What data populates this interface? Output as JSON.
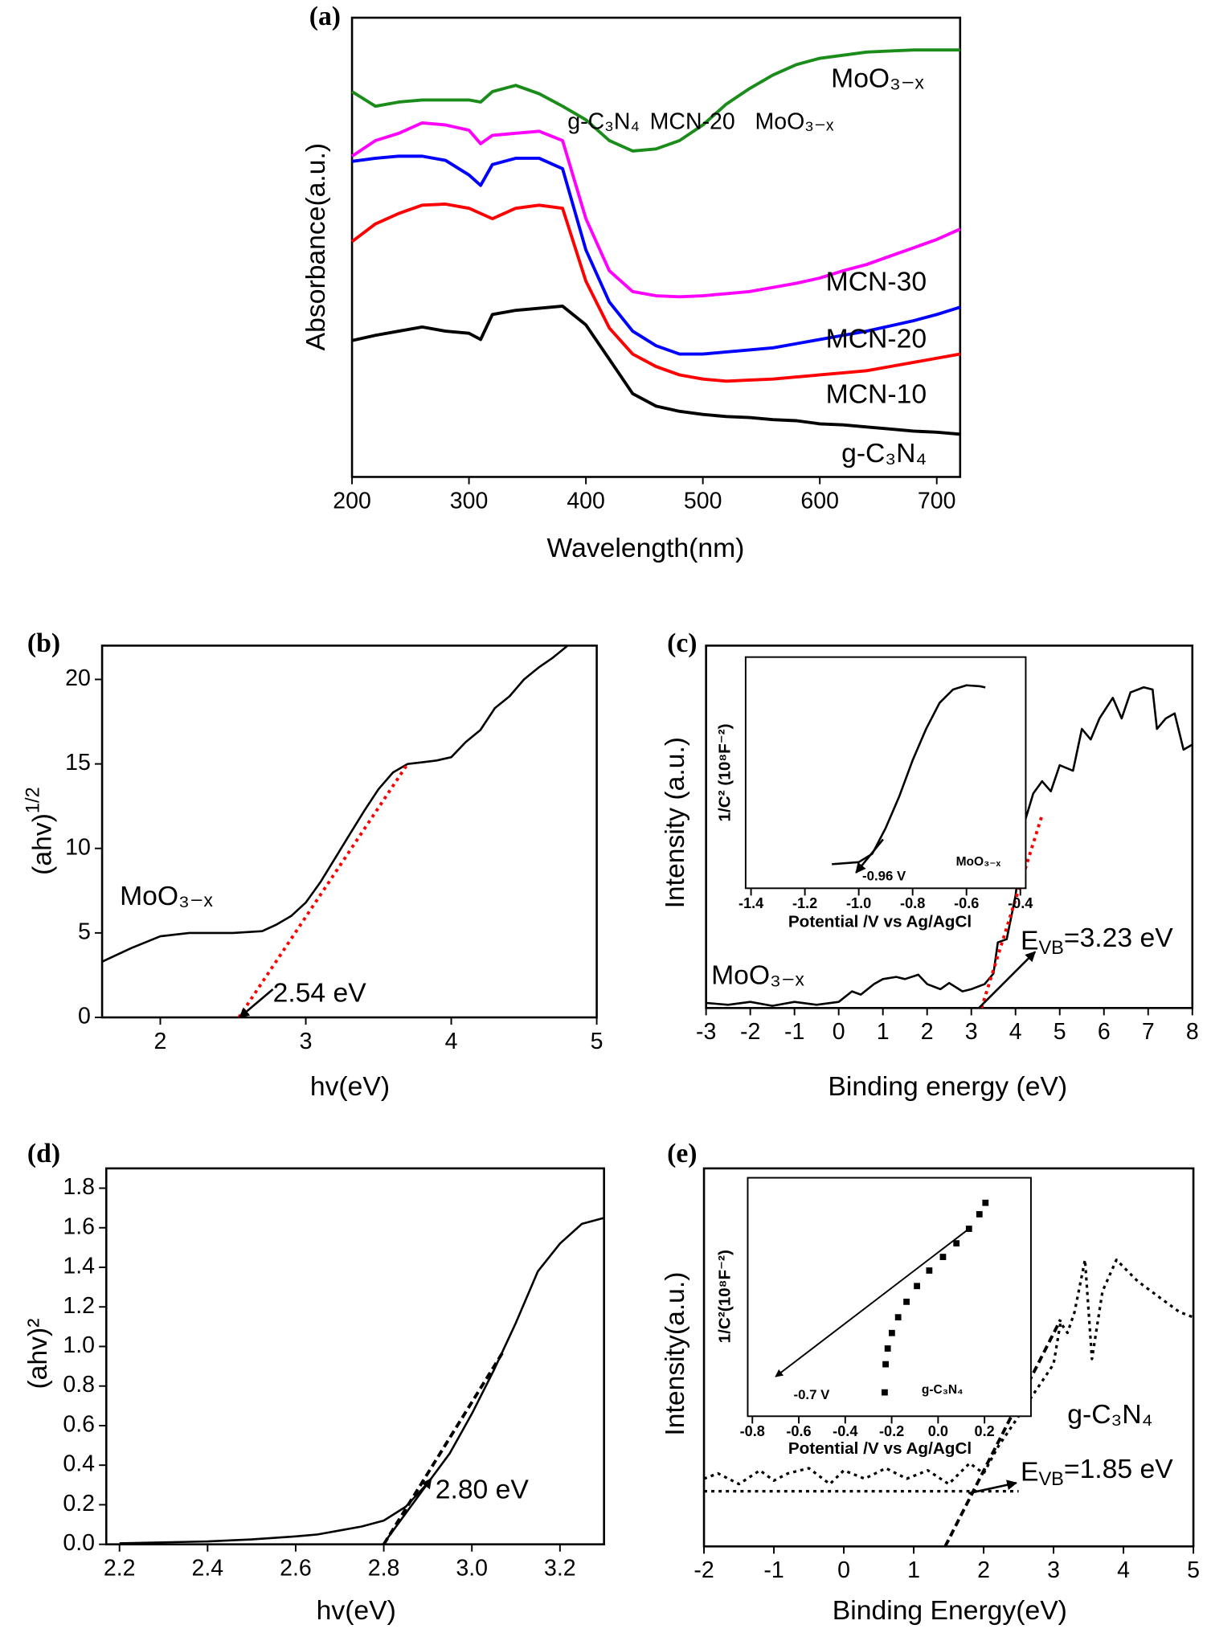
{
  "chart_data": [
    {
      "type": "line",
      "title": "(a)",
      "x_label": "Wavelength(nm)",
      "y_label": "Absorbance(a.u.)",
      "x": [
        200,
        220,
        240,
        260,
        280,
        300,
        310,
        320,
        340,
        360,
        380,
        400,
        420,
        440,
        460,
        480,
        500,
        520,
        540,
        560,
        580,
        600,
        620,
        640,
        660,
        680,
        700,
        720
      ],
      "xlim": [
        200,
        720
      ],
      "xticks": [
        200,
        300,
        400,
        500,
        600,
        700
      ],
      "ylim": [
        0,
        441
      ],
      "series": [
        {
          "name": "g-C₃N₄",
          "color": "#000000",
          "values": [
            131,
            136,
            140,
            144,
            140,
            138,
            132,
            156,
            160,
            162,
            164,
            146,
            113,
            80,
            68,
            63,
            60,
            58,
            57,
            55,
            54,
            51,
            50,
            48,
            46,
            44,
            43,
            41
          ]
        },
        {
          "name": "MCN-10",
          "color": "#ff0000",
          "values": [
            226,
            243,
            253,
            261,
            262,
            258,
            253,
            248,
            258,
            261,
            258,
            188,
            143,
            118,
            106,
            98,
            94,
            92,
            93,
            94,
            96,
            98,
            100,
            102,
            106,
            110,
            114,
            118
          ]
        },
        {
          "name": "MCN-20",
          "color": "#0000ff",
          "values": [
            303,
            306,
            308,
            308,
            304,
            290,
            280,
            300,
            306,
            306,
            296,
            218,
            168,
            140,
            126,
            118,
            118,
            120,
            122,
            124,
            128,
            132,
            136,
            140,
            145,
            150,
            156,
            163
          ]
        },
        {
          "name": "MCN-30",
          "color": "#ff00ff",
          "values": [
            308,
            323,
            330,
            340,
            338,
            333,
            320,
            328,
            330,
            332,
            323,
            248,
            198,
            178,
            174,
            173,
            174,
            176,
            178,
            182,
            186,
            191,
            198,
            204,
            212,
            220,
            228,
            238
          ]
        },
        {
          "name": "MoO₃₋ₓ",
          "color": "#1a8c1a",
          "values": [
            370,
            356,
            360,
            362,
            362,
            362,
            360,
            370,
            376,
            368,
            356,
            343,
            323,
            313,
            315,
            323,
            338,
            358,
            373,
            386,
            396,
            402,
            405,
            408,
            409,
            410,
            410,
            410
          ]
        }
      ],
      "inset_labels": [
        "g-C₃N₄",
        "MCN-20",
        "MoO₃₋ₓ"
      ]
    },
    {
      "type": "line",
      "title": "(b)",
      "x_label": "hv(eV)",
      "y_label": [
        {
          "text": "(ahv)"
        },
        {
          "sup": "1/2"
        }
      ],
      "x": [
        1.6,
        1.8,
        2.0,
        2.2,
        2.5,
        2.7,
        2.8,
        2.9,
        3.0,
        3.1,
        3.2,
        3.3,
        3.4,
        3.5,
        3.6,
        3.7,
        3.8,
        3.9,
        4.0,
        4.1,
        4.2,
        4.3,
        4.4,
        4.5,
        4.6,
        4.7,
        4.8
      ],
      "xlim": [
        1.6,
        5
      ],
      "xticks": [
        2,
        3,
        4,
        5
      ],
      "ylim": [
        0,
        22
      ],
      "yticks": [
        0,
        5,
        10,
        15,
        20
      ],
      "series": [
        {
          "name": "MoO₃₋ₓ",
          "color": "#000000",
          "values": [
            3.3,
            4.1,
            4.8,
            5.0,
            5.0,
            5.1,
            5.5,
            6.0,
            6.8,
            8.0,
            9.4,
            10.8,
            12.2,
            13.5,
            14.5,
            15.0,
            15.1,
            15.2,
            15.4,
            16.3,
            17.0,
            18.3,
            19.0,
            20.0,
            20.7,
            21.3,
            22.0
          ]
        }
      ],
      "fit": {
        "x": [
          2.54,
          3.7
        ],
        "values": [
          0,
          15
        ],
        "color": "#ff0000",
        "line_style": "dotted"
      },
      "annotations": [
        "2.54 eV"
      ]
    },
    {
      "type": "line",
      "title": "(c)",
      "x_label": "Binding energy (eV)",
      "y_label": "Intensity (a.u.)",
      "x": [
        -3,
        -2.5,
        -2,
        -1.5,
        -1,
        -0.5,
        0,
        0.3,
        0.5,
        0.8,
        1,
        1.3,
        1.5,
        1.8,
        2,
        2.3,
        2.5,
        2.8,
        3,
        3.3,
        3.5,
        3.6,
        3.8,
        4,
        4.2,
        4.4,
        4.6,
        4.8,
        5,
        5.3,
        5.5,
        5.7,
        5.9,
        6.2,
        6.4,
        6.6,
        6.9,
        7.1,
        7.2,
        7.4,
        7.6,
        7.8,
        8
      ],
      "xlim": [
        -3,
        8
      ],
      "xticks": [
        -3,
        -2,
        -1,
        0,
        1,
        2,
        3,
        4,
        5,
        6,
        7,
        8
      ],
      "ylim": [
        0,
        100
      ],
      "series": [
        {
          "name": "MoO₃₋ₓ",
          "color": "#000000",
          "values": [
            1.4,
            0.9,
            1.7,
            0.6,
            1.7,
            0.9,
            1.7,
            4.6,
            3.7,
            6.6,
            8.0,
            8.6,
            8.0,
            9.2,
            6.6,
            5.2,
            6.9,
            4.6,
            5.2,
            6.6,
            9.5,
            18.1,
            19.0,
            31.0,
            51.1,
            59.2,
            62.6,
            59.8,
            67.0,
            65.5,
            77.0,
            74.1,
            79.9,
            85.6,
            79.9,
            87.1,
            88.5,
            87.9,
            77.0,
            79.9,
            81.3,
            71.3,
            72.7
          ]
        }
      ],
      "fit": {
        "x": [
          3.23,
          4.6
        ],
        "values": [
          0,
          53.2
        ],
        "color": "#ff0000",
        "line_style": "dotted"
      },
      "annotations": [
        [
          {
            "text": "E"
          },
          {
            "sub": "VB"
          },
          {
            "text": "=3.23 eV"
          }
        ]
      ],
      "inset": {
        "type": "line",
        "x_label": "Potential /V vs Ag/AgCl",
        "y_label": "1/C² (10⁸F⁻²)",
        "x": [
          -1.1,
          -1.0,
          -0.95,
          -0.9,
          -0.85,
          -0.8,
          -0.75,
          -0.7,
          -0.65,
          -0.6,
          -0.55,
          -0.53
        ],
        "xlim": [
          -1.42,
          -0.38
        ],
        "xticks": [
          -1.4,
          -1.2,
          {
            "value": -1,
            "label": "-1.0"
          },
          -0.8,
          -0.6,
          -0.4
        ],
        "ylim": [
          0,
          100
        ],
        "series": [
          {
            "name": "MoO₃₋ₓ",
            "color": "#000000",
            "values": [
              10.4,
              11.3,
              14.9,
              26.1,
              39.6,
              55.4,
              68.9,
              80.2,
              86.0,
              87.8,
              87.4,
              86.9
            ]
          }
        ],
        "annotations": [
          "-0.96 V"
        ]
      }
    },
    {
      "type": "line",
      "title": "(d)",
      "x_label": "hv(eV)",
      "y_label": "(ahv)²",
      "x": [
        2.2,
        2.4,
        2.5,
        2.6,
        2.65,
        2.7,
        2.75,
        2.8,
        2.85,
        2.9,
        2.95,
        3.0,
        3.05,
        3.1,
        3.15,
        3.2,
        3.25,
        3.3
      ],
      "xlim": [
        2.17,
        3.3
      ],
      "xticks": [
        2.2,
        2.4,
        2.6,
        2.8,
        {
          "value": 3,
          "label": "3.0"
        },
        3.2
      ],
      "ylim": [
        0,
        1.9
      ],
      "yticks": [
        {
          "value": 0,
          "label": "0.0"
        },
        0.2,
        0.4,
        0.6,
        0.8,
        {
          "value": 1,
          "label": "1.0"
        },
        1.2,
        1.4,
        1.6,
        1.8
      ],
      "series": [
        {
          "color": "#000000",
          "values": [
            0.005,
            0.015,
            0.025,
            0.04,
            0.05,
            0.07,
            0.09,
            0.12,
            0.19,
            0.31,
            0.46,
            0.66,
            0.88,
            1.12,
            1.38,
            1.52,
            1.62,
            1.65
          ]
        }
      ],
      "fit": {
        "x": [
          2.8,
          3.07
        ],
        "values": [
          0,
          0.97
        ],
        "color": "#000000",
        "line_style": "dashed"
      },
      "annotations": [
        "2.80 eV"
      ]
    },
    {
      "type": "line",
      "title": "(e)",
      "x_label": "Binding Energy(eV)",
      "y_label": "Intensity(a.u.)",
      "x": [
        -2,
        -1.8,
        -1.5,
        -1.2,
        -1,
        -0.8,
        -0.5,
        -0.2,
        0,
        0.3,
        0.6,
        0.9,
        1.2,
        1.5,
        1.8,
        2,
        2.2,
        2.5,
        2.8,
        3.0,
        3.1,
        3.2,
        3.3,
        3.45,
        3.55,
        3.7,
        3.9,
        4.2,
        4.5,
        4.8,
        5
      ],
      "xlim": [
        -2,
        5
      ],
      "xticks": [
        -2,
        -1,
        0,
        1,
        2,
        3,
        4,
        5
      ],
      "ylim": [
        0,
        100
      ],
      "series": [
        {
          "name": "g-C₃N₄",
          "color": "#000000",
          "line_style": "dotted",
          "values": [
            17.9,
            19.3,
            16.5,
            20.1,
            17.4,
            19.3,
            20.7,
            16.5,
            20.1,
            17.9,
            20.7,
            17.9,
            20.1,
            16.5,
            22.0,
            19.3,
            26.2,
            34.4,
            42.7,
            48.2,
            59.2,
            56.5,
            62.0,
            75.8,
            49.6,
            67.5,
            75.8,
            70.2,
            66.1,
            62.0,
            60.6
          ]
        },
        {
          "color": "#000000",
          "line_style": "dotted",
          "x": [
            -2,
            2.5
          ],
          "values": [
            14.6,
            14.6
          ]
        }
      ],
      "fit": {
        "x": [
          1.45,
          3.1
        ],
        "values": [
          0,
          60
        ],
        "color": "#000000",
        "line_style": "dashed"
      },
      "annotations": [
        [
          {
            "text": "E"
          },
          {
            "sub": "VB"
          },
          {
            "text": "=1.85 eV"
          }
        ]
      ],
      "inset": {
        "type": "scatter",
        "x_label": "Potential /V vs Ag/AgCl",
        "y_label": "1/C²(10⁸F⁻²)",
        "x": [
          -0.23,
          -0.226,
          -0.217,
          -0.199,
          -0.172,
          -0.136,
          -0.091,
          -0.038,
          0.021,
          0.079,
          0.133,
          0.178,
          0.204
        ],
        "xlim": [
          -0.82,
          0.4
        ],
        "xticks": [
          -0.8,
          -0.6,
          -0.4,
          -0.2,
          {
            "value": 0,
            "label": "0.0"
          },
          0.2
        ],
        "ylim": [
          0,
          100
        ],
        "series": [
          {
            "name": "g-C₃N₄",
            "color": "#000000",
            "values": [
              10.0,
              21.8,
              28.4,
              34.9,
              41.5,
              48.0,
              54.6,
              61.1,
              66.8,
              72.5,
              78.6,
              84.7,
              89.5
            ]
          }
        ],
        "fit": {
          "x": [
            -0.7,
            0.133
          ],
          "values": [
            16.6,
            78.6
          ],
          "color": "#000000",
          "line_style": "solid",
          "arrow": true
        },
        "annotations": [
          "-0.7 V"
        ]
      }
    }
  ]
}
